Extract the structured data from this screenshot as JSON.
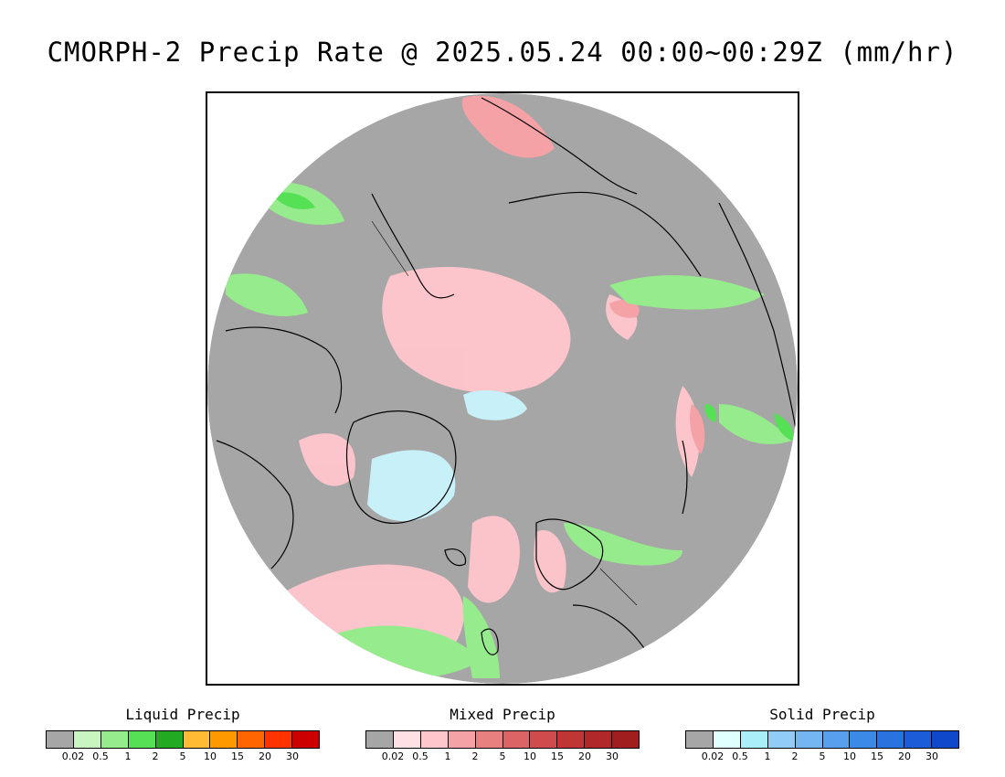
{
  "title": "CMORPH-2 Precip Rate @ 2025.05.24 00:00~00:29Z (mm/hr)",
  "map": {
    "projection": "north-polar-stereographic",
    "no_precip_color": "#a6a6a6",
    "outside_color": "#ffffff",
    "coastline_color": "#000000"
  },
  "legends": [
    {
      "id": "liquid",
      "title": "Liquid Precip",
      "colors": [
        "#a6a6a6",
        "#c8f5c0",
        "#96ec8c",
        "#55e055",
        "#22aa22",
        "#ffbb33",
        "#ff9900",
        "#ff6600",
        "#ff3300",
        "#cc0000"
      ],
      "ticks": [
        "0.02",
        "0.5",
        "1",
        "2",
        "5",
        "10",
        "15",
        "20",
        "30"
      ]
    },
    {
      "id": "mixed",
      "title": "Mixed Precip",
      "colors": [
        "#a6a6a6",
        "#ffe0e4",
        "#ffc6cc",
        "#f4a2a6",
        "#e88080",
        "#dc6464",
        "#d04c4c",
        "#c03636",
        "#b02828",
        "#a01e1e"
      ],
      "ticks": [
        "0.02",
        "0.5",
        "1",
        "2",
        "5",
        "10",
        "15",
        "20",
        "30"
      ]
    },
    {
      "id": "solid",
      "title": "Solid Precip",
      "colors": [
        "#a6a6a6",
        "#e0ffff",
        "#aaeefa",
        "#90ccf5",
        "#74b6f2",
        "#58a0ef",
        "#3c8ae8",
        "#2a72e0",
        "#1c5cd8",
        "#1048cc"
      ],
      "ticks": [
        "0.02",
        "0.5",
        "1",
        "2",
        "5",
        "10",
        "15",
        "20",
        "30"
      ]
    }
  ]
}
